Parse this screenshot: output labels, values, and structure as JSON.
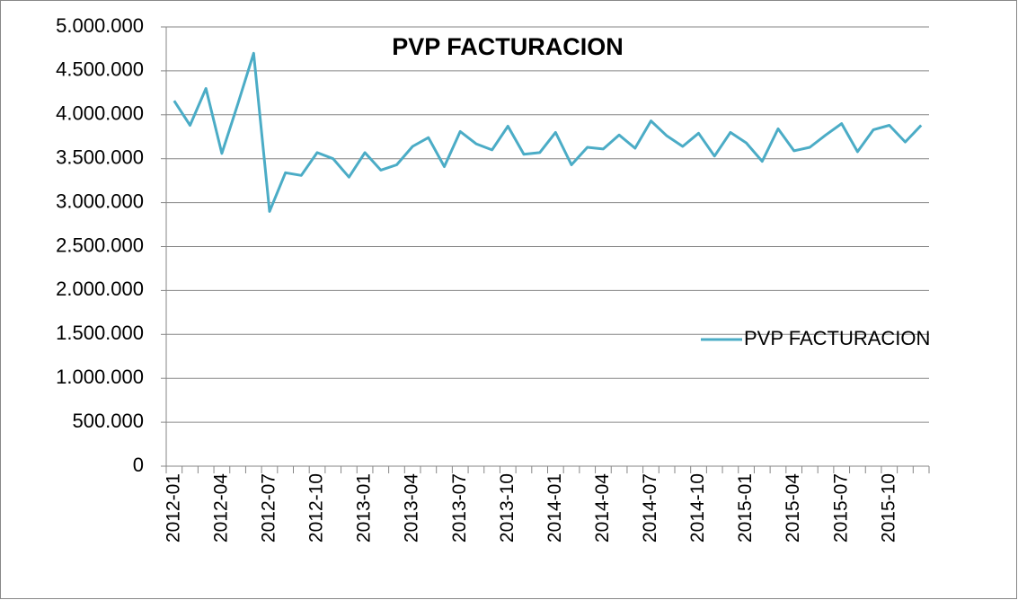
{
  "chart_data": {
    "type": "line",
    "title": "PVP FACTURACION",
    "categories": [
      "2012-01",
      null,
      null,
      "2012-04",
      null,
      null,
      "2012-07",
      null,
      null,
      "2012-10",
      null,
      null,
      "2013-01",
      null,
      null,
      "2013-04",
      null,
      null,
      "2013-07",
      null,
      null,
      "2013-10",
      null,
      null,
      "2014-01",
      null,
      null,
      "2014-04",
      null,
      null,
      "2014-07",
      null,
      null,
      "2014-10",
      null,
      null,
      "2015-01",
      null,
      null,
      "2015-04",
      null,
      null,
      "2015-07",
      null,
      null,
      "2015-10",
      null,
      null
    ],
    "series": [
      {
        "name": "PVP FACTURACION",
        "color": "#4bacc6",
        "values": [
          4160000,
          3880000,
          4300000,
          3560000,
          4120000,
          4700000,
          2900000,
          3340000,
          3310000,
          3570000,
          3500000,
          3290000,
          3570000,
          3370000,
          3430000,
          3640000,
          3740000,
          3410000,
          3810000,
          3670000,
          3600000,
          3870000,
          3550000,
          3570000,
          3800000,
          3430000,
          3630000,
          3610000,
          3770000,
          3620000,
          3930000,
          3760000,
          3640000,
          3790000,
          3530000,
          3800000,
          3680000,
          3470000,
          3840000,
          3590000,
          3630000,
          3770000,
          3900000,
          3580000,
          3830000,
          3880000,
          3690000,
          3880000
        ]
      }
    ],
    "ylim": [
      0,
      5000000
    ],
    "yticks": [
      0,
      {
        "value": 500000,
        "label": "500.000"
      },
      {
        "value": 1000000,
        "label": "1.000.000"
      },
      {
        "value": 1500000,
        "label": "1.500.000"
      },
      {
        "value": 2000000,
        "label": "2.000.000"
      },
      {
        "value": 2500000,
        "label": "2.500.000"
      },
      {
        "value": 3000000,
        "label": "3.000.000"
      },
      {
        "value": 3500000,
        "label": "3.500.000"
      },
      {
        "value": 4000000,
        "label": "4.000.000"
      },
      {
        "value": 4500000,
        "label": "4.500.000"
      },
      {
        "value": 5000000,
        "label": "5.000.000"
      }
    ],
    "grid": true,
    "legend": "right"
  }
}
